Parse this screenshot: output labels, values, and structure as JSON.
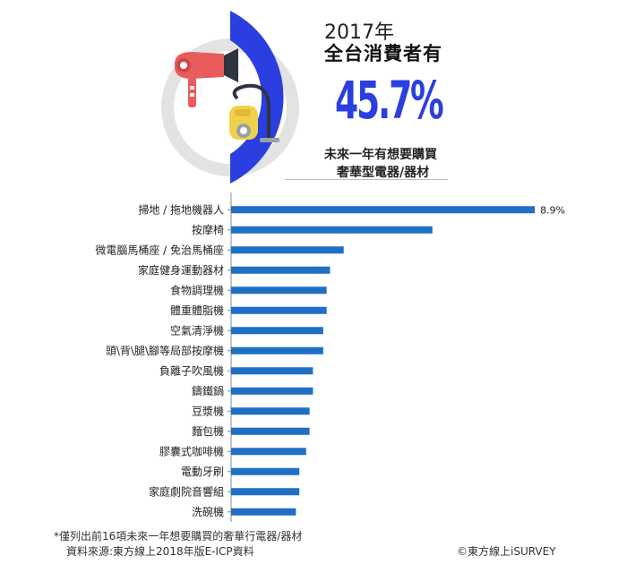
{
  "header": {
    "year": "2017年",
    "headline": "全台消費者有",
    "percent": "45.7%",
    "percent_value": 45.7,
    "subtitle_line1": "未來一年有想要購買",
    "subtitle_line2": "奢華型電器/器材"
  },
  "icons": [
    "hair-dryer-icon",
    "vacuum-cleaner-icon"
  ],
  "colors": {
    "accent": "#2b3fe0",
    "bar": "#1f6fc4",
    "ring_bg": "#e3e3e3"
  },
  "chart_data": {
    "type": "bar",
    "orientation": "horizontal",
    "categories": [
      "掃地 / 拖地機器人",
      "按摩椅",
      "微電腦馬桶座 / 免治馬桶座",
      "家庭健身運動器材",
      "食物調理機",
      "體重體脂機",
      "空氣清淨機",
      "頭\\背\\腿\\腳等局部按摩機",
      "負離子吹風機",
      "鑄鐵鍋",
      "豆漿機",
      "麵包機",
      "膠囊式咖啡機",
      "電動牙刷",
      "家庭劇院音響組",
      "洗碗機"
    ],
    "values": [
      8.9,
      5.9,
      3.3,
      2.9,
      2.8,
      2.8,
      2.7,
      2.7,
      2.4,
      2.4,
      2.3,
      2.3,
      2.2,
      2.0,
      2.0,
      1.9
    ],
    "data_labels": [
      "8.9%"
    ],
    "xlim": [
      0,
      8.9
    ],
    "grid": false
  },
  "footer": {
    "note": "*僅列出前16項未來一年想要購買的奢華行電器/器材",
    "source": "資料來源:東方線上2018年版E-ICP資料",
    "credit": "©東方線上iSURVEY"
  }
}
